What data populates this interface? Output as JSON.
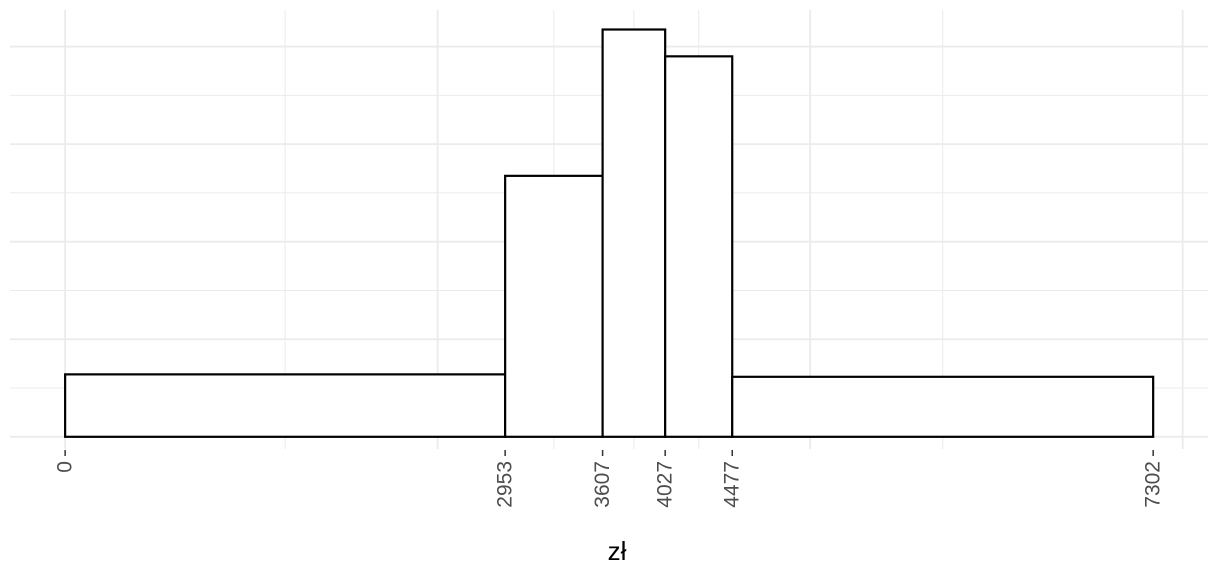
{
  "chart_data": {
    "type": "bar",
    "xlabel": "zł",
    "ylabel": "",
    "x_ticks": [
      0,
      2953,
      3607,
      4027,
      4477,
      7302
    ],
    "x_tick_labels": [
      "0",
      "2953",
      "3607",
      "4027",
      "4477",
      "7302"
    ],
    "xlim": [
      -370,
      7670
    ],
    "bins": [
      {
        "start": 0,
        "end": 2953,
        "value": 1.28
      },
      {
        "start": 2953,
        "end": 3607,
        "value": 5.35
      },
      {
        "start": 3607,
        "end": 4027,
        "value": 8.35
      },
      {
        "start": 4027,
        "end": 4477,
        "value": 7.8
      },
      {
        "start": 4477,
        "end": 7302,
        "value": 1.23
      }
    ],
    "ylim": [
      -0.25,
      8.75
    ],
    "grid": true,
    "colors": {
      "fill": "#ffffff",
      "stroke": "#000000",
      "grid": "#ebebeb",
      "tick_label": "#4d4d4d"
    }
  }
}
